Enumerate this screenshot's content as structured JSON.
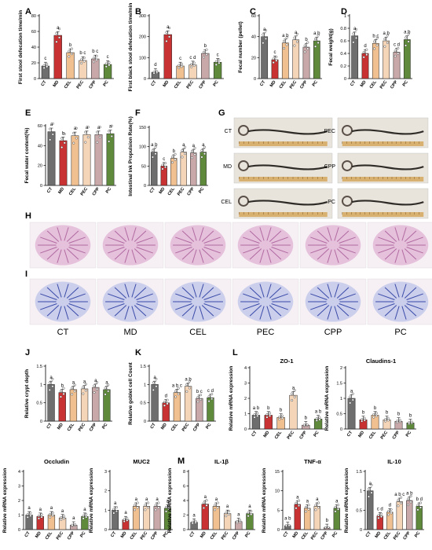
{
  "groups": [
    "CT",
    "MD",
    "CEL",
    "PEC",
    "CPP",
    "PC"
  ],
  "colors": [
    "#6e6e6e",
    "#c83232",
    "#f0c090",
    "#f5d5b8",
    "#c8a8a8",
    "#5f8a3c"
  ],
  "letters": {
    "H": "H",
    "I": "I",
    "G": "G"
  },
  "histology": {
    "labels": [
      "CT",
      "MD",
      "CEL",
      "PEC",
      "CPP",
      "PC"
    ]
  },
  "intestine": {
    "left": [
      "CT",
      "MD",
      "CEL"
    ],
    "right": [
      "PEC",
      "CPP",
      "PC"
    ]
  },
  "chart_data": [
    {
      "id": "A",
      "type": "bar",
      "letter": "A",
      "ylabel": "First  stool defecation time/min",
      "ylim": [
        0,
        80
      ],
      "ticks": [
        0,
        20,
        40,
        60,
        80
      ],
      "values": [
        16,
        55,
        33,
        23,
        25,
        18
      ],
      "sig": [
        "c",
        "a",
        "b",
        "b c",
        "b c",
        "c"
      ]
    },
    {
      "id": "B",
      "type": "bar",
      "letter": "B",
      "ylabel": "First black stool defecation time/min",
      "ylim": [
        0,
        300
      ],
      "ticks": [
        0,
        100,
        200,
        300
      ],
      "values": [
        30,
        210,
        60,
        65,
        120,
        78
      ],
      "sig": [
        "d",
        "a",
        "c",
        "c d",
        "b",
        "c"
      ]
    },
    {
      "id": "C",
      "type": "bar",
      "letter": "C",
      "ylabel": "Fecal number (pellet)",
      "ylim": [
        0,
        60
      ],
      "ticks": [
        0,
        20,
        40,
        60
      ],
      "values": [
        40,
        18,
        34,
        37,
        30,
        36
      ],
      "sig": [
        "a",
        "c",
        "a b",
        "a",
        "b",
        "a b"
      ]
    },
    {
      "id": "D",
      "type": "bar",
      "letter": "D",
      "ylabel": "Fecal weight(g)",
      "ylim": [
        0,
        1.0
      ],
      "ticks": [
        0.0,
        0.2,
        0.4,
        0.6,
        0.8,
        1.0
      ],
      "values": [
        0.68,
        0.4,
        0.56,
        0.6,
        0.42,
        0.62
      ],
      "sig": [
        "a",
        "d",
        "b c",
        "a b",
        "c d",
        "a b"
      ]
    },
    {
      "id": "E",
      "type": "bar",
      "letter": "E",
      "ylabel": "Fecal water content(%)",
      "ylim": [
        0,
        60
      ],
      "ticks": [
        0,
        20,
        40,
        60
      ],
      "values": [
        54,
        45,
        50,
        51,
        51,
        52
      ],
      "sig": [
        "a",
        "b",
        "a",
        "a",
        "a",
        "a"
      ]
    },
    {
      "id": "F",
      "type": "bar",
      "letter": "F",
      "ylabel": "Intestinal Ink Propulsion Rate(%)",
      "ylim": [
        0,
        150
      ],
      "ticks": [
        0,
        50,
        100,
        150
      ],
      "values": [
        86,
        50,
        70,
        86,
        84,
        86
      ],
      "sig": [
        "a b",
        "c",
        "b",
        "a",
        "a",
        "a"
      ]
    },
    {
      "id": "J",
      "type": "bar",
      "letter": "J",
      "ylabel": "Relative crypt depth",
      "ylim": [
        0,
        1.5
      ],
      "ticks": [
        0.0,
        0.5,
        1.0,
        1.5
      ],
      "values": [
        1.0,
        0.78,
        0.86,
        0.88,
        0.92,
        0.86
      ],
      "sig": [
        "a",
        "b",
        "a",
        "a",
        "a",
        "a"
      ]
    },
    {
      "id": "K",
      "type": "bar",
      "letter": "K",
      "ylabel": "Relative goblet cell Count",
      "ylim": [
        0,
        1.5
      ],
      "ticks": [
        0.0,
        0.5,
        1.0,
        1.5
      ],
      "values": [
        1.0,
        0.5,
        0.78,
        0.95,
        0.62,
        0.64
      ],
      "sig": [
        "a",
        "d",
        "a b c",
        "a b",
        "b c",
        "c d"
      ]
    },
    {
      "id": "ZO1",
      "type": "bar",
      "letter": "L",
      "title": "ZO-1",
      "ylabel": "Relative mRNA expression",
      "ylim": [
        0,
        4
      ],
      "ticks": [
        0,
        1,
        2,
        3,
        4
      ],
      "values": [
        0.9,
        0.9,
        0.75,
        2.2,
        0.25,
        0.65
      ],
      "sig": [
        "a b",
        "b",
        "b",
        "a",
        "b",
        "a b"
      ]
    },
    {
      "id": "CLDN",
      "type": "bar",
      "letter": "",
      "title": "Claudins-1",
      "ylabel": "Relative mRNA expression",
      "ylim": [
        0,
        2.0
      ],
      "ticks": [
        0.0,
        0.5,
        1.0,
        1.5,
        2.0
      ],
      "values": [
        1.0,
        0.3,
        0.45,
        0.3,
        0.25,
        0.2
      ],
      "sig": [
        "a",
        "b",
        "b",
        "b",
        "b",
        "b"
      ]
    },
    {
      "id": "OCLN",
      "type": "bar",
      "letter": "",
      "title": "Occludin",
      "ylabel": "Relative mRNA expression",
      "ylim": [
        0,
        4
      ],
      "ticks": [
        0,
        1,
        2,
        3,
        4
      ],
      "values": [
        1.0,
        0.9,
        1.0,
        0.8,
        0.3,
        0.9
      ],
      "sig": [
        "a",
        "a",
        "a",
        "a",
        "a",
        "a"
      ]
    },
    {
      "id": "MUC2",
      "type": "bar",
      "letter": "",
      "title": "MUC2",
      "ylabel": "Relative mRNA expression",
      "ylim": [
        0,
        3
      ],
      "ticks": [
        0,
        1,
        2,
        3
      ],
      "values": [
        1.0,
        0.5,
        1.2,
        1.2,
        1.2,
        1.1
      ],
      "sig": [
        "a",
        "a",
        "a",
        "a",
        "a",
        "a"
      ]
    },
    {
      "id": "IL1B",
      "type": "bar",
      "letter": "M",
      "title": "IL-1β",
      "ylabel": "Relative mRNA expression",
      "ylim": [
        0,
        8
      ],
      "ticks": [
        0,
        2,
        4,
        6,
        8
      ],
      "values": [
        1.0,
        3.5,
        3.2,
        2.2,
        1.1,
        2.2
      ],
      "sig": [
        "a",
        "a",
        "a",
        "a",
        "a",
        "a"
      ]
    },
    {
      "id": "TNF",
      "type": "bar",
      "letter": "",
      "title": "TNF-α",
      "ylabel": "Relative mRNA expression",
      "ylim": [
        0,
        15
      ],
      "ticks": [
        0,
        5,
        10,
        15
      ],
      "values": [
        1.0,
        6.5,
        5.5,
        6.0,
        0.5,
        5.5
      ],
      "sig": [
        "a b",
        "a",
        "a",
        "a",
        "b",
        "a"
      ]
    },
    {
      "id": "IL10",
      "type": "bar",
      "letter": "",
      "title": "IL-10",
      "ylabel": "Relative mRNA expression",
      "ylim": [
        0,
        1.5
      ],
      "ticks": [
        0.0,
        0.5,
        1.0,
        1.5
      ],
      "values": [
        1.0,
        0.35,
        0.45,
        0.72,
        0.75,
        0.6
      ],
      "sig": [
        "a",
        "c d",
        "d",
        "a b c",
        "a b",
        "b d"
      ]
    }
  ]
}
